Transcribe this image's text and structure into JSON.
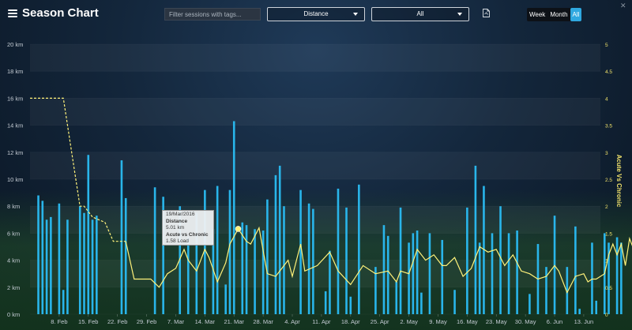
{
  "header": {
    "title": "Season Chart",
    "search_placeholder": "Filter sessions with tags...",
    "metric_select": "Distance",
    "filter_select": "All",
    "toggle": [
      "Week",
      "Month",
      "All"
    ],
    "toggle_active": "All"
  },
  "tooltip": {
    "date": "19/Mar/2016",
    "metric_label": "Distance",
    "metric_value": "5.01 km",
    "ratio_label": "Acute vs Chronic",
    "ratio_value": "1.58 Load"
  },
  "colors": {
    "bar": "#29b5ea",
    "line": "#fff27a",
    "accent": "#2fa8e0"
  },
  "icons": [
    "menu-icon",
    "pdf-icon",
    "close-icon",
    "chevron-down-icon"
  ],
  "chart_data": {
    "type": "bar",
    "y_left": {
      "ticks": [
        "0 km",
        "2 km",
        "4 km",
        "6 km",
        "8 km",
        "10 km",
        "12 km",
        "14 km",
        "16 km",
        "18 km",
        "20 km"
      ],
      "ylim": [
        0,
        20
      ]
    },
    "y_right": {
      "label": "Acute Vs Chronic",
      "ticks": [
        "0",
        "0.5",
        "1",
        "1.5",
        "2",
        "2.5",
        "3",
        "3.5",
        "4",
        "4.5",
        "5"
      ],
      "ylim": [
        0,
        5
      ]
    },
    "x_ticks": [
      "8. Feb",
      "15. Feb",
      "22. Feb",
      "29. Feb",
      "7. Mar",
      "14. Mar",
      "21. Mar",
      "28. Mar",
      "4. Apr",
      "11. Apr",
      "18. Apr",
      "25. Apr",
      "2. May",
      "9. May",
      "16. May",
      "23. May",
      "30. May",
      "6. Jun",
      "13. Jun"
    ],
    "x_range_days": [
      -7,
      130
    ],
    "series": [
      {
        "type": "bar",
        "points": [
          [
            -5,
            8.8
          ],
          [
            -4,
            8.4
          ],
          [
            -3,
            7
          ],
          [
            -2,
            7.2
          ],
          [
            0,
            8.2
          ],
          [
            1,
            1.8
          ],
          [
            2,
            7
          ],
          [
            5,
            8
          ],
          [
            6,
            7.5
          ],
          [
            7,
            11.8
          ],
          [
            8,
            7
          ],
          [
            9,
            7.3
          ],
          [
            15,
            11.4
          ],
          [
            16,
            8.6
          ],
          [
            23,
            9.4
          ],
          [
            25,
            8.7
          ],
          [
            29,
            8
          ],
          [
            31,
            5.7
          ],
          [
            33,
            7.5
          ],
          [
            35,
            9.2
          ],
          [
            37,
            6.3
          ],
          [
            38,
            9.5
          ],
          [
            40,
            2.2
          ],
          [
            41,
            9.2
          ],
          [
            42,
            14.3
          ],
          [
            44,
            6.8
          ],
          [
            45,
            6.6
          ],
          [
            47,
            6.3
          ],
          [
            49,
            6.2
          ],
          [
            50,
            8.5
          ],
          [
            52,
            10.3
          ],
          [
            53,
            11
          ],
          [
            54,
            8
          ],
          [
            58,
            9.2
          ],
          [
            60,
            8.2
          ],
          [
            61,
            7.8
          ],
          [
            64,
            1.7
          ],
          [
            65,
            4.7
          ],
          [
            67,
            9.3
          ],
          [
            69,
            7.9
          ],
          [
            70,
            1.3
          ],
          [
            72,
            9.6
          ],
          [
            76,
            3.5
          ],
          [
            78,
            6.6
          ],
          [
            79,
            5.8
          ],
          [
            81,
            2.4
          ],
          [
            82,
            7.9
          ],
          [
            84,
            5.3
          ],
          [
            85,
            6
          ],
          [
            86,
            6.2
          ],
          [
            87,
            1.6
          ],
          [
            89,
            6
          ],
          [
            92,
            5.5
          ],
          [
            95,
            1.8
          ],
          [
            98,
            7.9
          ],
          [
            100,
            11
          ],
          [
            101,
            5.3
          ],
          [
            102,
            9.5
          ],
          [
            104,
            6
          ],
          [
            106,
            8
          ],
          [
            108,
            6
          ],
          [
            110,
            6.2
          ],
          [
            113,
            1.5
          ],
          [
            115,
            5.2
          ],
          [
            117,
            3.5
          ],
          [
            119,
            7.3
          ],
          [
            122,
            3.5
          ],
          [
            124,
            6.5
          ],
          [
            125,
            0.4
          ],
          [
            128,
            5.3
          ],
          [
            129,
            1
          ],
          [
            131,
            6
          ],
          [
            132,
            5.3
          ],
          [
            134,
            5.7
          ],
          [
            135,
            5.3
          ],
          [
            138,
            9
          ],
          [
            139,
            2.5
          ],
          [
            140,
            7.5
          ]
        ]
      },
      {
        "type": "line",
        "name": "Acute Vs Chronic",
        "dashed_until": 16,
        "points": [
          [
            -7,
            4
          ],
          [
            0,
            4
          ],
          [
            1,
            4
          ],
          [
            5,
            2
          ],
          [
            6,
            2
          ],
          [
            8,
            1.8
          ],
          [
            11,
            1.7
          ],
          [
            13,
            1.35
          ],
          [
            16,
            1.35
          ],
          [
            18,
            0.65
          ],
          [
            22,
            0.65
          ],
          [
            24,
            0.5
          ],
          [
            26,
            0.75
          ],
          [
            28,
            0.85
          ],
          [
            30,
            1.2
          ],
          [
            31,
            1.0
          ],
          [
            33,
            0.8
          ],
          [
            35,
            1.2
          ],
          [
            36,
            1.05
          ],
          [
            38,
            0.6
          ],
          [
            40,
            0.95
          ],
          [
            41,
            1.3
          ],
          [
            43,
            1.58
          ],
          [
            45,
            1.35
          ],
          [
            46,
            1.3
          ],
          [
            48,
            1.6
          ],
          [
            50,
            0.75
          ],
          [
            52,
            0.7
          ],
          [
            53,
            0.8
          ],
          [
            55,
            1.0
          ],
          [
            56,
            0.7
          ],
          [
            58,
            1.3
          ],
          [
            59,
            0.8
          ],
          [
            62,
            0.9
          ],
          [
            65,
            1.15
          ],
          [
            67,
            0.8
          ],
          [
            70,
            0.55
          ],
          [
            73,
            0.9
          ],
          [
            76,
            0.75
          ],
          [
            79,
            0.8
          ],
          [
            81,
            0.6
          ],
          [
            82,
            0.8
          ],
          [
            84,
            0.75
          ],
          [
            86,
            1.2
          ],
          [
            88,
            1.0
          ],
          [
            90,
            1.1
          ],
          [
            92,
            0.9
          ],
          [
            93,
            0.9
          ],
          [
            95,
            1.05
          ],
          [
            97,
            0.7
          ],
          [
            99,
            0.85
          ],
          [
            101,
            1.25
          ],
          [
            103,
            1.15
          ],
          [
            105,
            1.2
          ],
          [
            107,
            0.9
          ],
          [
            109,
            1.1
          ],
          [
            111,
            0.8
          ],
          [
            113,
            0.75
          ],
          [
            115,
            0.65
          ],
          [
            117,
            0.7
          ],
          [
            119,
            0.9
          ],
          [
            120,
            0.8
          ],
          [
            122,
            0.4
          ],
          [
            124,
            0.7
          ],
          [
            126,
            0.75
          ],
          [
            127,
            0.6
          ],
          [
            128,
            0.65
          ],
          [
            129,
            0.65
          ],
          [
            131,
            0.75
          ],
          [
            132,
            1.1
          ],
          [
            133,
            1.3
          ],
          [
            134,
            1.1
          ],
          [
            135,
            1.3
          ],
          [
            136,
            0.9
          ],
          [
            137,
            1.4
          ],
          [
            138,
            1.2
          ],
          [
            140,
            1.3
          ]
        ]
      }
    ],
    "highlight": [
      43,
      1.58
    ],
    "grid": true
  }
}
